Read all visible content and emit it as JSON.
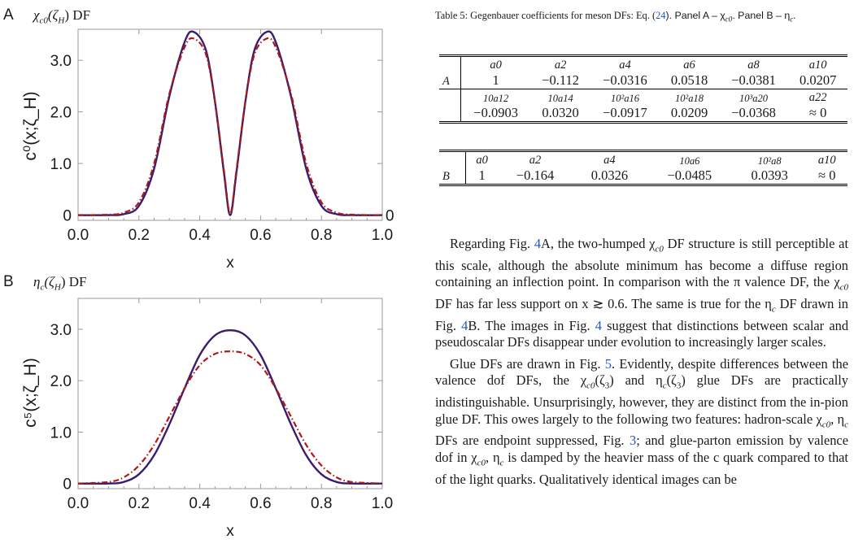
{
  "figure": {
    "panel_a": {
      "letter": "A",
      "title_greek": "χ",
      "title_sub": "c0",
      "title_arg": "(ζ",
      "title_arg_sub": "H",
      "title_tail": ") DF",
      "ylabel": "c⁰(x;ζ_H)",
      "xlabel": "x",
      "right_tick": "0"
    },
    "panel_b": {
      "letter": "B",
      "title_greek": "η",
      "title_sub": "c",
      "title_arg": "(ζ",
      "title_arg_sub": "H",
      "title_tail": ") DF",
      "ylabel": "c⁵(x;ζ_H)",
      "xlabel": "x"
    },
    "colors": {
      "solid": "#3a1c6e",
      "dashdot": "#b01818",
      "axis": "#9a9a9a"
    }
  },
  "chart_data": [
    {
      "type": "line",
      "title": "χc0(ζH) DF",
      "xlabel": "x",
      "ylabel": "c0(x;ζH)",
      "xlim": [
        0,
        1
      ],
      "ylim": [
        -0.1,
        3.6
      ],
      "xticks": [
        "0.0",
        "0.2",
        "0.4",
        "0.6",
        "0.8",
        "1.0"
      ],
      "yticks": [
        "0",
        "1.0",
        "2.0",
        "3.0"
      ],
      "x": [
        0.0,
        0.1,
        0.15,
        0.2,
        0.25,
        0.3,
        0.35,
        0.38,
        0.42,
        0.45,
        0.48,
        0.5,
        0.52,
        0.55,
        0.58,
        0.62,
        0.65,
        0.7,
        0.75,
        0.8,
        0.85,
        0.9,
        1.0
      ],
      "series": [
        {
          "style": "solid",
          "values": [
            0,
            0,
            0.02,
            0.18,
            0.9,
            2.3,
            3.35,
            3.55,
            3.2,
            2.2,
            0.8,
            0.0,
            0.8,
            2.2,
            3.2,
            3.55,
            3.35,
            2.3,
            0.9,
            0.18,
            0.02,
            0,
            0
          ]
        },
        {
          "style": "dash-dot",
          "values": [
            0,
            0.01,
            0.05,
            0.25,
            1.0,
            2.35,
            3.25,
            3.42,
            3.12,
            2.2,
            0.85,
            0.03,
            0.85,
            2.2,
            3.12,
            3.42,
            3.25,
            2.35,
            1.0,
            0.25,
            0.05,
            0.01,
            0
          ]
        }
      ]
    },
    {
      "type": "line",
      "title": "ηc(ζH) DF",
      "xlabel": "x",
      "ylabel": "c5(x;ζH)",
      "xlim": [
        0,
        1
      ],
      "ylim": [
        -0.1,
        3.6
      ],
      "xticks": [
        "0.0",
        "0.2",
        "0.4",
        "0.6",
        "0.8",
        "1.0"
      ],
      "yticks": [
        "0",
        "1.0",
        "2.0",
        "3.0"
      ],
      "x": [
        0.0,
        0.1,
        0.15,
        0.2,
        0.25,
        0.3,
        0.35,
        0.4,
        0.45,
        0.5,
        0.55,
        0.6,
        0.65,
        0.7,
        0.75,
        0.8,
        0.85,
        0.9,
        1.0
      ],
      "series": [
        {
          "style": "solid",
          "values": [
            0,
            0.0,
            0.03,
            0.18,
            0.55,
            1.15,
            1.85,
            2.5,
            2.88,
            2.98,
            2.88,
            2.5,
            1.85,
            1.15,
            0.55,
            0.18,
            0.03,
            0.0,
            0
          ]
        },
        {
          "style": "dash-dot",
          "values": [
            0,
            0.03,
            0.12,
            0.35,
            0.75,
            1.3,
            1.85,
            2.3,
            2.52,
            2.57,
            2.52,
            2.3,
            1.85,
            1.3,
            0.75,
            0.35,
            0.12,
            0.03,
            0
          ]
        }
      ]
    }
  ],
  "caption": {
    "prefix": "Table 5:  Gegenbauer coefficients for meson DFs: Eq. (",
    "eq_ref": "24",
    "middle": ").  Panel A – χ",
    "chi_sub": "c0",
    "panel_b": ".  Panel B – η",
    "eta_sub": "c",
    "end": "."
  },
  "table_a": {
    "label": "A",
    "head1": [
      "a0",
      "a2",
      "a4",
      "a6",
      "a8",
      "a10"
    ],
    "vals1": [
      "1",
      "−0.112",
      "−0.0316",
      "0.0518",
      "−0.0381",
      "0.0207"
    ],
    "head2": [
      "10a12",
      "10a14",
      "10²a16",
      "10²a18",
      "10³a20",
      "a22"
    ],
    "vals2": [
      "−0.0903",
      "0.0320",
      "−0.0917",
      "0.0209",
      "−0.0368",
      "≈ 0"
    ]
  },
  "table_b": {
    "label": "B",
    "head": [
      "a0",
      "a2",
      "a4",
      "10a6",
      "10²a8",
      "a10"
    ],
    "vals": [
      "1",
      "−0.164",
      "0.0326",
      "−0.0485",
      "0.0393",
      "≈ 0"
    ]
  },
  "text": {
    "p1a": "Regarding Fig. ",
    "p1_ref1": "4",
    "p1b": "A, the two-humped χ",
    "p1_sub1": "c0",
    "p1c": " DF structure is still perceptible at this scale, although the absolute minimum has become a diffuse region containing an inflection point. In comparison with the π valence DF, the χ",
    "p1_sub2": "c0",
    "p1d": " DF has far less support on x ≳ 0.6. The same is true for the η",
    "p1_sub3": "c",
    "p1e": " DF drawn in Fig. ",
    "p1_ref2": "4",
    "p1f": "B. The images in Fig. ",
    "p1_ref3": "4",
    "p1g": " suggest that distinctions between scalar and pseudoscalar DFs disappear under evolution to increasingly larger scales.",
    "p2a": "Glue DFs are drawn in Fig. ",
    "p2_ref1": "5",
    "p2b": ". Evidently, despite differences between the valence dof DFs, the χ",
    "p2_sub1": "c0",
    "p2c": "(ζ",
    "p2_sub2": "3",
    "p2d": ") and η",
    "p2_sub3": "c",
    "p2e": "(ζ",
    "p2_sub4": "3",
    "p2f": ") glue DFs are practically indistinguishable. Unsurprisingly, however, they are distinct from the in-pion glue DF. This owes largely to the following two features: hadron-scale χ",
    "p2_sub5": "c0",
    "p2g": ", η",
    "p2_sub6": "c",
    "p2h": " DFs are endpoint suppressed, Fig. ",
    "p2_ref2": "3",
    "p2i": "; and glue-parton emission by valence dof in χ",
    "p2_sub7": "c0",
    "p2j": ", η",
    "p2_sub8": "c",
    "p2k": " is damped by the heavier mass of the c quark compared to that of the light quarks. Qualitatively identical images can be"
  }
}
